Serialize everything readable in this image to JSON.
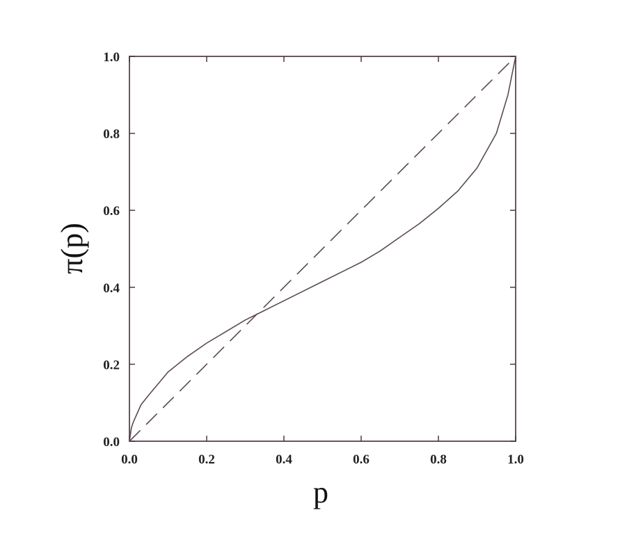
{
  "chart_data": {
    "type": "line",
    "title": "",
    "xlabel": "p",
    "ylabel": "π(p)",
    "xlim": [
      0,
      1
    ],
    "ylim": [
      0,
      1
    ],
    "grid": false,
    "legend": "none",
    "x_ticks": [
      "0.0",
      "0.2",
      "0.4",
      "0.6",
      "0.8",
      "1.0"
    ],
    "y_ticks": [
      "0.0",
      "0.2",
      "0.4",
      "0.6",
      "0.8",
      "1.0"
    ],
    "series": [
      {
        "style": "solid",
        "color": "#5a4a55",
        "x": [
          0,
          0.005,
          0.01,
          0.03,
          0.05,
          0.1,
          0.15,
          0.2,
          0.25,
          0.3,
          0.35,
          0.4,
          0.45,
          0.5,
          0.55,
          0.6,
          0.65,
          0.7,
          0.75,
          0.8,
          0.85,
          0.9,
          0.95,
          0.98,
          1.0
        ],
        "y": [
          0,
          0.035,
          0.05,
          0.095,
          0.12,
          0.18,
          0.22,
          0.255,
          0.285,
          0.315,
          0.34,
          0.365,
          0.39,
          0.415,
          0.44,
          0.465,
          0.495,
          0.53,
          0.565,
          0.605,
          0.65,
          0.71,
          0.8,
          0.9,
          1.0
        ]
      },
      {
        "style": "dashed",
        "color": "#5a4a55",
        "x": [
          0,
          1
        ],
        "y": [
          0,
          1
        ]
      }
    ]
  }
}
